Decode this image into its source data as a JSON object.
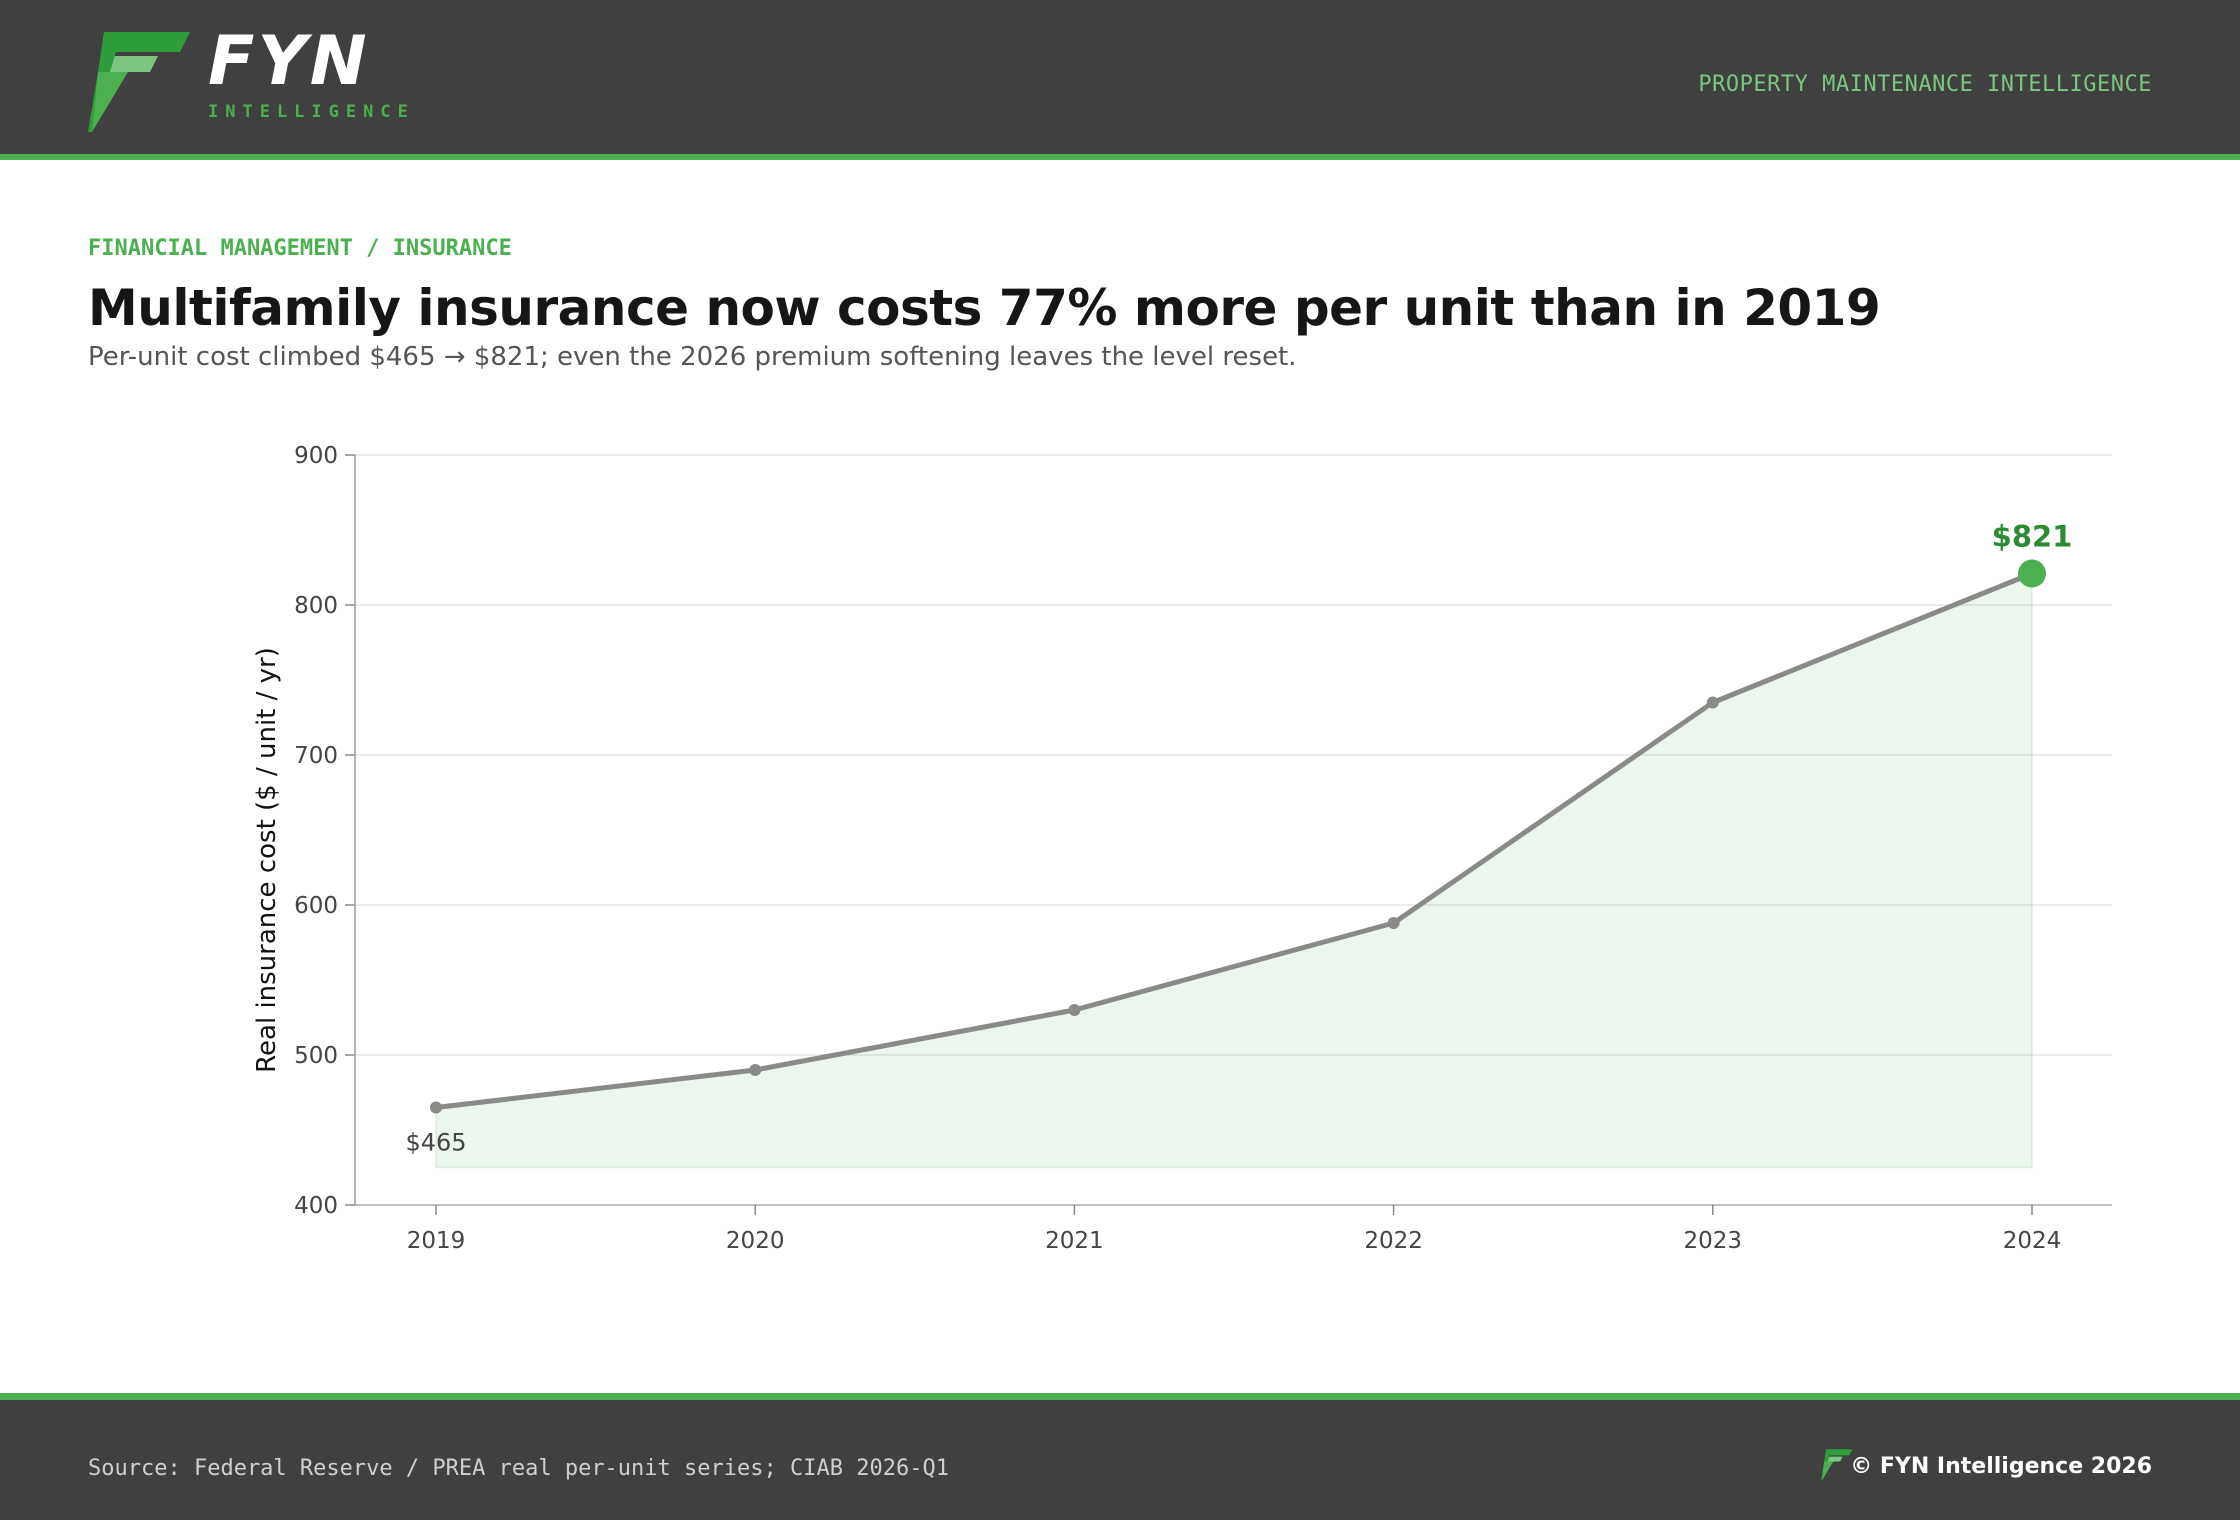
{
  "header": {
    "brand_name": "FYN",
    "brand_sub": "INTELLIGENCE",
    "tagline": "PROPERTY MAINTENANCE INTELLIGENCE"
  },
  "category": "FINANCIAL MANAGEMENT / INSURANCE",
  "title": "Multifamily insurance now costs 77% more per unit than in 2019",
  "subtitle": "Per-unit cost climbed $465 → $821; even the 2026 premium softening leaves the level reset.",
  "colors": {
    "accent": "#4caf50",
    "dark_accent": "#2e8b35",
    "line": "#8a8a88",
    "header_bg": "#404040"
  },
  "icons": {
    "logo": "fyn-logo-icon"
  },
  "chart_data": {
    "type": "line",
    "x": [
      "2019",
      "2020",
      "2021",
      "2022",
      "2023",
      "2024"
    ],
    "values": [
      465,
      490,
      530,
      588,
      735,
      821
    ],
    "ylabel": "Real insurance cost ($ / unit / yr)",
    "xlabel": "",
    "ylim": [
      400,
      900
    ],
    "yticks": [
      400,
      500,
      600,
      700,
      800,
      900
    ],
    "annotations": [
      {
        "x": "2019",
        "text": "$465"
      },
      {
        "x": "2024",
        "text": "$821"
      }
    ],
    "grid": true,
    "area_fill": true
  },
  "footer": {
    "source": "Source: Federal Reserve / PREA real per-unit series; CIAB 2026-Q1",
    "copyright": "© FYN Intelligence 2026"
  }
}
